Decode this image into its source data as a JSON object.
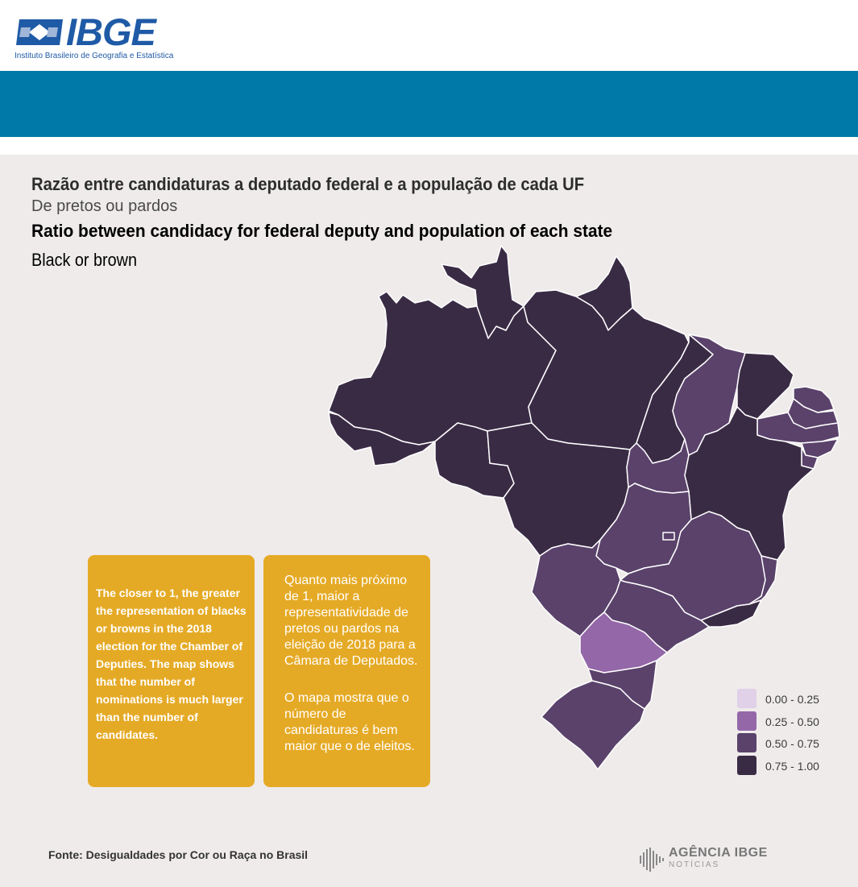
{
  "header": {
    "logo_text": "IBGE",
    "logo_subtitle": "Instituto Brasileiro de Geografia e Estatística",
    "brand_color": "#1f5aa6",
    "banner_color": "#0079a8"
  },
  "title": {
    "pt": "Razão entre candidaturas a deputado federal e a população de cada UF",
    "pt_sub": "De pretos ou pardos",
    "en": "Ratio between candidacy for federal deputy and population of each state",
    "en_sub": "Black or brown"
  },
  "notes": {
    "en": "The closer to 1, the greater the representation of blacks or browns in the 2018 election for the Chamber of Deputies. The map shows that the number of nominations is much larger than the number of candidates.",
    "pt_1": "Quanto mais próximo de 1, maior a representatividade de pretos ou pardos na eleição de 2018 para a Câmara de Deputados.",
    "pt_2": "O mapa mostra que o número de candidaturas é bem maior que o de eleitos.",
    "box_color": "#e5aa25"
  },
  "legend": [
    {
      "label": "0.00 - 0.25",
      "color": "#e0d0e8"
    },
    {
      "label": "0.25 - 0.50",
      "color": "#9467a8"
    },
    {
      "label": "0.50 - 0.75",
      "color": "#5a426b"
    },
    {
      "label": "0.75 - 1.00",
      "color": "#3a2b45"
    }
  ],
  "source": "Fonte: Desigualdades por Cor ou Raça no Brasil",
  "footer_logo": {
    "word": "AGÊNCIA IBGE",
    "sub": "NOTÍCIAS"
  },
  "states_class": {
    "darkest_0.75_1.00": [
      "AM",
      "RR",
      "AP",
      "PA",
      "AC",
      "RO",
      "MT",
      "MA",
      "RN",
      "BA",
      "RJ"
    ],
    "dark_0.50_0.75": [
      "PI",
      "CE",
      "PB",
      "PE",
      "AL",
      "SE",
      "TO",
      "GO",
      "MG",
      "ES",
      "MS",
      "SP",
      "SC",
      "RS"
    ],
    "medium_0.25_0.50": [
      "PR"
    ]
  }
}
